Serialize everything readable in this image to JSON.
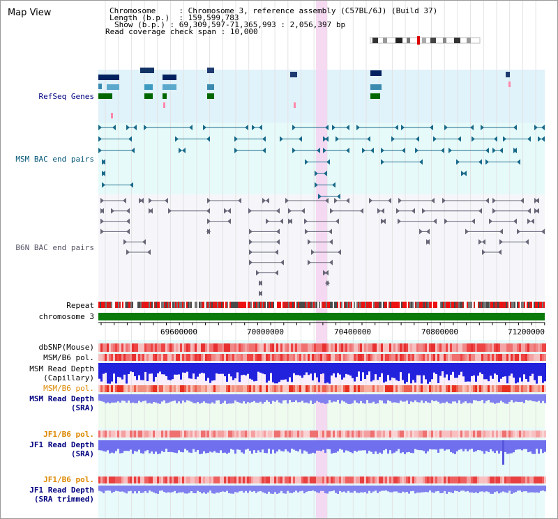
{
  "view_title": "Map View",
  "info": {
    "chromosome_label": "Chromosome",
    "chromosome_value": "Chromosome 3, reference assembly (C57BL/6J) (Build 37)",
    "length_label": "Length (b.p.)",
    "length_value": "159,599,783",
    "show_label": "Show (b.p.)",
    "show_value": "69,309,597-71,365,993 : 2,056,397 bp",
    "coverage_label": "Read coverage check span",
    "coverage_value": "10,000"
  },
  "tracks": {
    "refseq": "RefSeq Genes",
    "msm_bac": "MSM BAC end pairs",
    "b6n_bac": "B6N BAC end pairs",
    "repeat": "Repeat",
    "chromosome": "chromosome 3",
    "dbsnp": "dbSNP(Mouse)",
    "msm_b6_pol_1": "MSM/B6 pol.",
    "msm_depth_cap_1": "MSM Read Depth",
    "msm_depth_cap_2": "(Capillary)",
    "msm_b6_pol_2": "MSM/B6 pol.",
    "msm_depth_sra_1": "MSM Read Depth",
    "msm_depth_sra_2": "(SRA)",
    "jf1_b6_pol_1": "JF1/B6 pol.",
    "jf1_depth_sra_1": "JF1 Read Depth",
    "jf1_depth_sra_2": "(SRA)",
    "jf1_b6_pol_2": "JF1/B6 pol.",
    "jf1_depth_trim_1": "JF1 Read Depth",
    "jf1_depth_trim_2": "(SRA trimmed)"
  },
  "axis": {
    "ticks": [
      "69600000",
      "70000000",
      "70400000",
      "70800000",
      "71200000"
    ]
  },
  "colors": {
    "refseq_bg": "#e0f2fa",
    "msm_bac_bg": "#e6fafa",
    "b6n_bg": "#f6f6fa",
    "highlight": "#f4d4f0",
    "chromosome_bar": "#0a7a0a",
    "label_navy": "#000080",
    "label_orange": "#dd8800",
    "depth_blue": "#2222dd",
    "depth_light": "#7070ee"
  }
}
